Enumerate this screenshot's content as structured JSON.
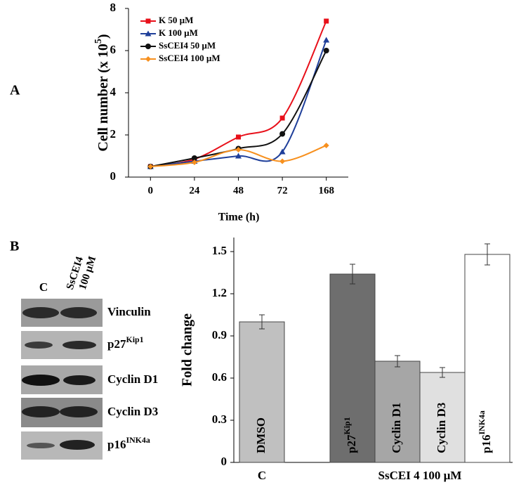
{
  "panels": [
    "A",
    "B"
  ],
  "blot": {
    "columns": [
      "C",
      "SsCEI4",
      "100 µM"
    ],
    "rows": [
      {
        "base": "Vinculin"
      },
      {
        "base": "p27",
        "sup": "Kip1"
      },
      {
        "base": "Cyclin D1"
      },
      {
        "base": "Cyclin D3"
      },
      {
        "base": "p16",
        "sup": "INK4a"
      }
    ]
  },
  "chart_data": [
    {
      "type": "line",
      "x_label": "Time (h)",
      "y_label": {
        "text": "Cell number (x 10",
        "sup": "5",
        "tail": ")"
      },
      "categories": [
        "0",
        "24",
        "48",
        "72",
        "168"
      ],
      "ylim": [
        0,
        8
      ],
      "yticks": [
        0,
        2,
        4,
        6,
        8
      ],
      "series": [
        {
          "name": "K 50 µM",
          "color": "#e8101a",
          "marker": "square",
          "values": [
            0.5,
            0.85,
            1.9,
            2.8,
            7.4
          ]
        },
        {
          "name": "K 100 µM",
          "color": "#1f3f9a",
          "marker": "triangle",
          "values": [
            0.5,
            0.75,
            1.0,
            1.2,
            6.5
          ]
        },
        {
          "name": "SsCEI4 50 µM",
          "color": "#111111",
          "marker": "circle",
          "values": [
            0.5,
            0.9,
            1.35,
            2.05,
            6.0
          ]
        },
        {
          "name": "SsCEI4 100 µM",
          "color": "#f7901e",
          "marker": "diamond",
          "values": [
            0.5,
            0.7,
            1.3,
            0.75,
            1.5
          ]
        }
      ]
    },
    {
      "type": "bar",
      "y_label": "Fold change",
      "categories": [
        {
          "base": "DMSO"
        },
        {
          "base": "p27",
          "sup": "Kip1"
        },
        {
          "base": "Cyclin D1"
        },
        {
          "base": "Cyclin D3"
        },
        {
          "base": "p16",
          "sup": "INK4a"
        }
      ],
      "values": [
        1.0,
        1.34,
        0.72,
        0.64,
        1.48
      ],
      "errors": [
        0.05,
        0.07,
        0.04,
        0.035,
        0.075
      ],
      "colors": [
        "#c0c0c0",
        "#6e6e6e",
        "#a6a6a6",
        "#e0e0e0",
        "#ffffff"
      ],
      "groups": [
        "C",
        "SsCEI 4 100 µM"
      ],
      "ylim": [
        0,
        1.6
      ],
      "yticks": [
        0,
        0.3,
        0.6,
        0.9,
        1.2,
        1.5
      ]
    }
  ]
}
